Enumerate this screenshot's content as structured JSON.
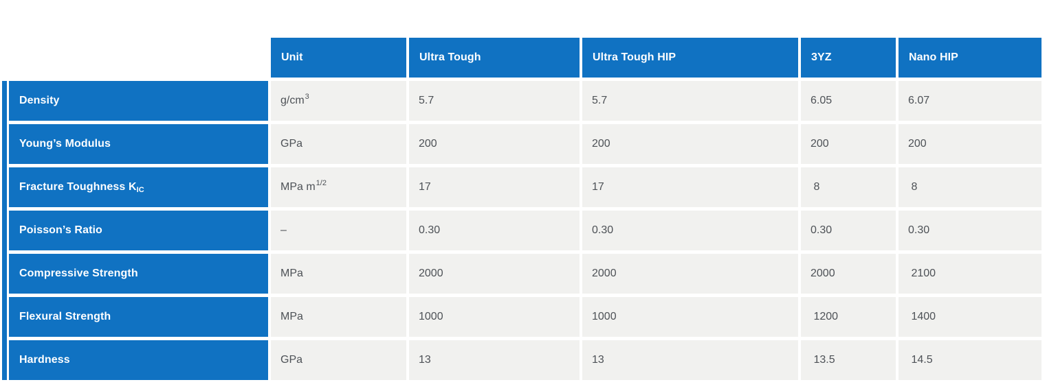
{
  "colors": {
    "header_blue": "#1072c2",
    "cell_bg": "#f1f1ef",
    "value_text": "#4d5156",
    "label_text": "#fdfeff"
  },
  "table": {
    "columns": [
      "Unit",
      "Ultra Tough",
      "Ultra Tough HIP",
      "3YZ",
      "Nano HIP"
    ],
    "rows": [
      {
        "label": "Density",
        "unit": "g/cm^{3}",
        "values": [
          "5.7",
          "5.7",
          "6.05",
          "6.07"
        ]
      },
      {
        "label": "Young’s Modulus",
        "unit": "GPa",
        "values": [
          "200",
          "200",
          "200",
          "200"
        ]
      },
      {
        "label": "Fracture Toughness K_{IC}",
        "unit": "MPa m^{1/2}",
        "values": [
          "17",
          "17",
          " 8",
          " 8"
        ]
      },
      {
        "label": "Poisson’s Ratio",
        "unit": "–",
        "values": [
          "0.30",
          "0.30",
          "0.30",
          "0.30"
        ]
      },
      {
        "label": "Compressive Strength",
        "unit": "MPa",
        "values": [
          "2000",
          "2000",
          "2000",
          " 2100"
        ]
      },
      {
        "label": "Flexural Strength",
        "unit": "MPa",
        "values": [
          "1000",
          "1000",
          " 1200",
          " 1400"
        ]
      },
      {
        "label": "Hardness",
        "unit": "GPa",
        "values": [
          "13",
          "13",
          " 13.5",
          " 14.5"
        ]
      }
    ]
  },
  "chart_data": {
    "type": "table",
    "columns": [
      "",
      "Unit",
      "Ultra Tough",
      "Ultra Tough HIP",
      "3YZ",
      "Nano HIP"
    ],
    "rows": [
      [
        "Density",
        "g/cm³",
        "5.7",
        "5.7",
        "6.05",
        "6.07"
      ],
      [
        "Young’s Modulus",
        "GPa",
        "200",
        "200",
        "200",
        "200"
      ],
      [
        "Fracture Toughness K_IC",
        "MPa m^1/2",
        "17",
        "17",
        "8",
        "8"
      ],
      [
        "Poisson’s Ratio",
        "–",
        "0.30",
        "0.30",
        "0.30",
        "0.30"
      ],
      [
        "Compressive Strength",
        "MPa",
        "2000",
        "2000",
        "2000",
        "2100"
      ],
      [
        "Flexural Strength",
        "MPa",
        "1000",
        "1000",
        "1200",
        "1400"
      ],
      [
        "Hardness",
        "GPa",
        "13",
        "13",
        "13.5",
        "14.5"
      ]
    ]
  }
}
